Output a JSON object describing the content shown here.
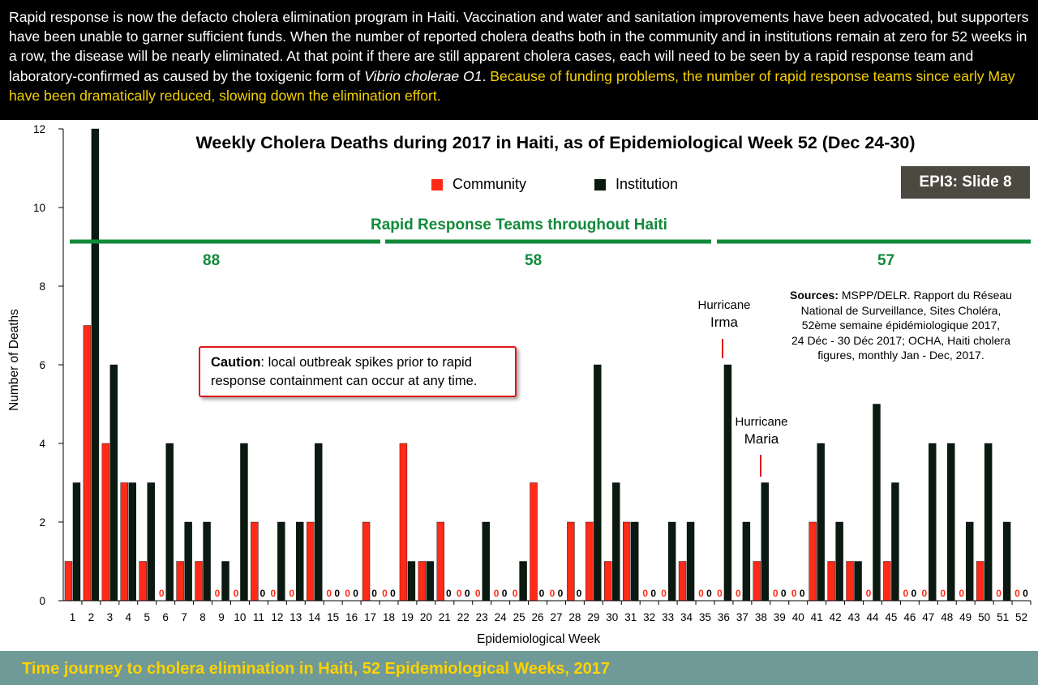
{
  "banner": {
    "text_main": "Rapid response is now the defacto cholera elimination program in Haiti. Vaccination and water and sanitation improvements have been advocated, but supporters have been unable to garner sufficient funds. When the number of reported cholera deaths both in the community and in institutions remain at zero for 52 weeks in a row, the disease will be nearly eliminated. At that point if there are still apparent cholera cases, each will need to be seen by a rapid response team and laboratory-confirmed as caused by the toxigenic form of ",
    "text_italic": "Vibrio cholerae O1",
    "text_after": ". ",
    "text_highlight": "Because of funding problems, the number of rapid response teams since early May have been dramatically reduced, slowing down the elimination effort."
  },
  "footer": {
    "text": "Time journey to cholera elimination in Haiti, 52 Epidemiological Weeks, 2017"
  },
  "badge": {
    "text": "EPI3: Slide 8"
  },
  "rrt": {
    "title": "Rapid Response Teams throughout Haiti",
    "counts": [
      "88",
      "58",
      "57"
    ]
  },
  "sources": {
    "label": "Sources:",
    "lines": [
      " MSPP/DELR. Rapport du Réseau",
      "National de Surveillance, Sites Choléra,",
      "52ème semaine épidémiologique 2017,",
      "24 Déc - 30 Déc 2017; OCHA, Haiti cholera",
      "figures, monthly Jan - Dec, 2017."
    ]
  },
  "caution": {
    "label": "Caution",
    "text": ": local outbreak spikes prior to rapid response containment can occur at any time."
  },
  "annotations": {
    "irma": {
      "line1": "Hurricane",
      "line2": "Irma"
    },
    "maria": {
      "line1": "Hurricane",
      "line2": "Maria"
    }
  },
  "colors": {
    "community": "#ff2a17",
    "institution": "#0b1a10",
    "rrt_green": "#118a3a",
    "highlight": "#f5d000"
  },
  "chart_data": {
    "type": "bar",
    "title": "Weekly Cholera Deaths during 2017 in Haiti, as of Epidemiological Week 52 (Dec 24-30)",
    "xlabel": "Epidemiological Week",
    "ylabel": "Number of Deaths",
    "ylim": [
      0,
      12
    ],
    "yticks": [
      0,
      2,
      4,
      6,
      8,
      10,
      12
    ],
    "legend_position": "top-center",
    "categories": [
      "1",
      "2",
      "3",
      "4",
      "5",
      "6",
      "7",
      "8",
      "9",
      "10",
      "11",
      "12",
      "13",
      "14",
      "15",
      "16",
      "17",
      "18",
      "19",
      "20",
      "21",
      "22",
      "23",
      "24",
      "25",
      "26",
      "27",
      "28",
      "29",
      "30",
      "31",
      "32",
      "33",
      "34",
      "35",
      "36",
      "37",
      "38",
      "39",
      "40",
      "41",
      "42",
      "43",
      "44",
      "45",
      "46",
      "47",
      "48",
      "49",
      "50",
      "51",
      "52"
    ],
    "series": [
      {
        "name": "Community",
        "values": [
          1,
          7,
          4,
          3,
          1,
          0,
          1,
          1,
          0,
          0,
          2,
          0,
          0,
          2,
          0,
          0,
          2,
          0,
          4,
          1,
          2,
          0,
          0,
          0,
          0,
          3,
          0,
          2,
          2,
          1,
          2,
          0,
          0,
          1,
          0,
          0,
          0,
          1,
          0,
          0,
          2,
          1,
          1,
          0,
          1,
          0,
          0,
          0,
          0,
          1,
          0,
          0
        ]
      },
      {
        "name": "Institution",
        "values": [
          3,
          12,
          6,
          3,
          3,
          4,
          2,
          2,
          1,
          4,
          0,
          2,
          2,
          4,
          0,
          0,
          0,
          0,
          1,
          1,
          0,
          0,
          2,
          0,
          1,
          0,
          0,
          0,
          6,
          3,
          2,
          0,
          2,
          2,
          0,
          6,
          2,
          3,
          0,
          0,
          4,
          2,
          1,
          5,
          3,
          0,
          4,
          4,
          2,
          4,
          2,
          0
        ]
      }
    ]
  }
}
